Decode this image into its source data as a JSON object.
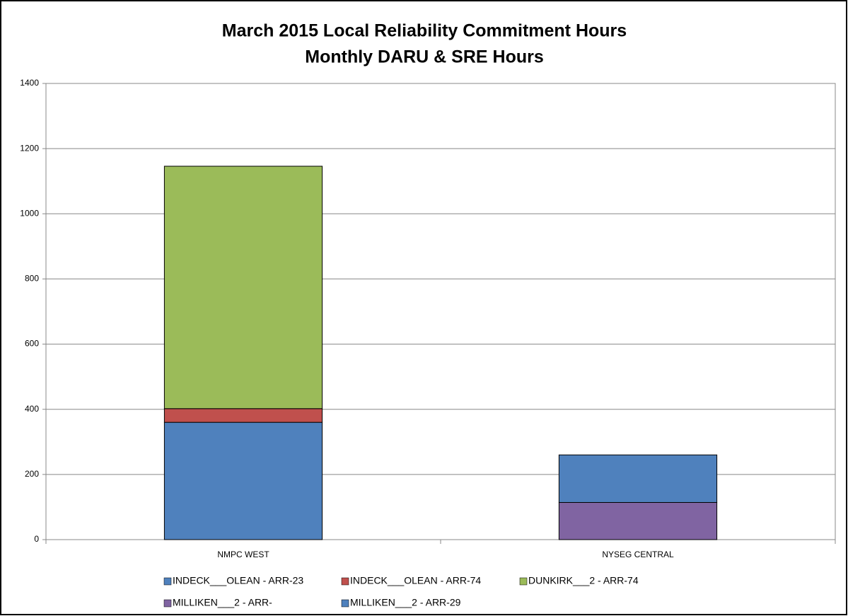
{
  "chart_data": {
    "type": "stacked_bar",
    "title": "March 2015 Local Reliability Commitment Hours",
    "subtitle": "Monthly DARU & SRE Hours",
    "categories": [
      "NMPC WEST",
      "NYSEG CENTRAL"
    ],
    "series": [
      {
        "name": "INDECK___OLEAN - ARR-23",
        "color": "#4f81bd",
        "values": [
          360,
          0
        ]
      },
      {
        "name": "INDECK___OLEAN - ARR-74",
        "color": "#c0504d",
        "values": [
          42,
          0
        ]
      },
      {
        "name": "DUNKIRK___2 - ARR-74",
        "color": "#9bbb59",
        "values": [
          744,
          0
        ]
      },
      {
        "name": "MILLIKEN___2 - ARR-",
        "color": "#8064a2",
        "values": [
          0,
          114
        ]
      },
      {
        "name": "MILLIKEN___2 - ARR-29",
        "color": "#4f81bd",
        "values": [
          0,
          146
        ]
      }
    ],
    "ylim": [
      0,
      1400
    ],
    "yticks": [
      0,
      200,
      400,
      600,
      800,
      1000,
      1200,
      1400
    ],
    "grid": true
  }
}
